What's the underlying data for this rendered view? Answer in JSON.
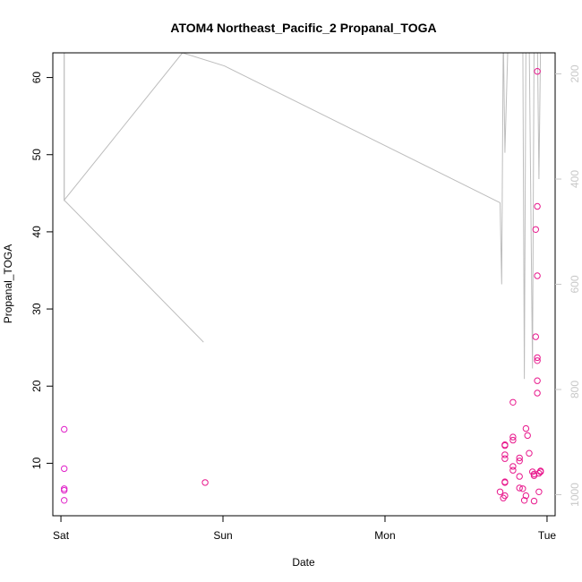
{
  "chart_data": {
    "type": "scatter",
    "title": "ATOM4 Northeast_Pacific_2 Propanal_TOGA",
    "xlabel": "Date",
    "ylabel": "Propanal_TOGA",
    "x_unit": "days since Sat 00:00",
    "xlim": [
      -0.05,
      3.05
    ],
    "ylim": [
      3.2,
      63.2
    ],
    "x_ticks": [
      {
        "value": 0,
        "label": "Sat"
      },
      {
        "value": 1,
        "label": "Sun"
      },
      {
        "value": 2,
        "label": "Mon"
      },
      {
        "value": 3,
        "label": "Tue"
      }
    ],
    "y_ticks": [
      {
        "value": 10,
        "label": "10"
      },
      {
        "value": 20,
        "label": "20"
      },
      {
        "value": 30,
        "label": "30"
      },
      {
        "value": 40,
        "label": "40"
      },
      {
        "value": 50,
        "label": "50"
      },
      {
        "value": 60,
        "label": "60"
      }
    ],
    "y2_ticks": [
      {
        "value": 200,
        "label": "200"
      },
      {
        "value": 400,
        "label": "400"
      },
      {
        "value": 600,
        "label": "600"
      },
      {
        "value": 800,
        "label": "800"
      },
      {
        "value": 1000,
        "label": "1000"
      }
    ],
    "y2lim_reversed": [
      1040,
      160
    ],
    "colors": {
      "points": "#e8178c",
      "points_alt": "#e021c8",
      "pressure_line": "#bdbdbd",
      "axis": "#000000",
      "right_axis": "#c8c8c8"
    },
    "series": [
      {
        "kind": "points",
        "points": [
          [
            0.02,
            14.4
          ],
          [
            0.02,
            9.3
          ],
          [
            0.02,
            6.7
          ],
          [
            0.02,
            6.5
          ],
          [
            0.02,
            5.2
          ],
          [
            0.89,
            7.5
          ],
          [
            2.71,
            6.3
          ],
          [
            2.73,
            5.5
          ],
          [
            2.74,
            5.8
          ],
          [
            2.74,
            7.5
          ],
          [
            2.74,
            7.6
          ],
          [
            2.74,
            10.6
          ],
          [
            2.74,
            11.1
          ],
          [
            2.74,
            12.3
          ],
          [
            2.74,
            12.4
          ],
          [
            2.79,
            9.1
          ],
          [
            2.79,
            9.6
          ],
          [
            2.79,
            13.0
          ],
          [
            2.79,
            13.4
          ],
          [
            2.79,
            17.9
          ],
          [
            2.83,
            8.3
          ],
          [
            2.83,
            10.3
          ],
          [
            2.83,
            10.7
          ],
          [
            2.83,
            6.8
          ],
          [
            2.85,
            6.7
          ],
          [
            2.86,
            5.2
          ],
          [
            2.87,
            14.5
          ],
          [
            2.87,
            5.8
          ],
          [
            2.88,
            13.6
          ],
          [
            2.89,
            11.3
          ],
          [
            2.91,
            8.9
          ],
          [
            2.92,
            5.1
          ],
          [
            2.92,
            8.6
          ],
          [
            2.92,
            8.4
          ],
          [
            2.93,
            26.4
          ],
          [
            2.93,
            40.3
          ],
          [
            2.94,
            60.8
          ],
          [
            2.94,
            43.3
          ],
          [
            2.94,
            34.3
          ],
          [
            2.94,
            23.7
          ],
          [
            2.94,
            23.3
          ],
          [
            2.94,
            20.7
          ],
          [
            2.94,
            19.1
          ],
          [
            2.95,
            6.3
          ],
          [
            2.95,
            8.7
          ],
          [
            2.96,
            8.9
          ],
          [
            2.96,
            9.0
          ]
        ]
      },
      {
        "kind": "pressure_line",
        "points": [
          [
            0.02,
            25
          ],
          [
            0.02,
            440
          ],
          [
            0.75,
            160
          ],
          [
            1.01,
            185
          ],
          [
            2.71,
            445
          ],
          [
            2.72,
            600
          ],
          [
            2.73,
            120
          ],
          [
            2.74,
            350
          ],
          [
            2.76,
            130
          ],
          [
            2.78,
            100
          ],
          [
            2.85,
            100
          ],
          [
            2.86,
            780
          ],
          [
            2.87,
            130
          ],
          [
            2.89,
            130
          ],
          [
            2.91,
            760
          ],
          [
            2.92,
            130
          ],
          [
            2.93,
            130
          ],
          [
            2.94,
            120
          ],
          [
            2.95,
            400
          ],
          [
            2.96,
            150
          ]
        ]
      },
      {
        "kind": "pressure_line",
        "points": [
          [
            0.02,
            25
          ],
          [
            0.02,
            440
          ],
          [
            0.88,
            710
          ]
        ]
      }
    ]
  }
}
